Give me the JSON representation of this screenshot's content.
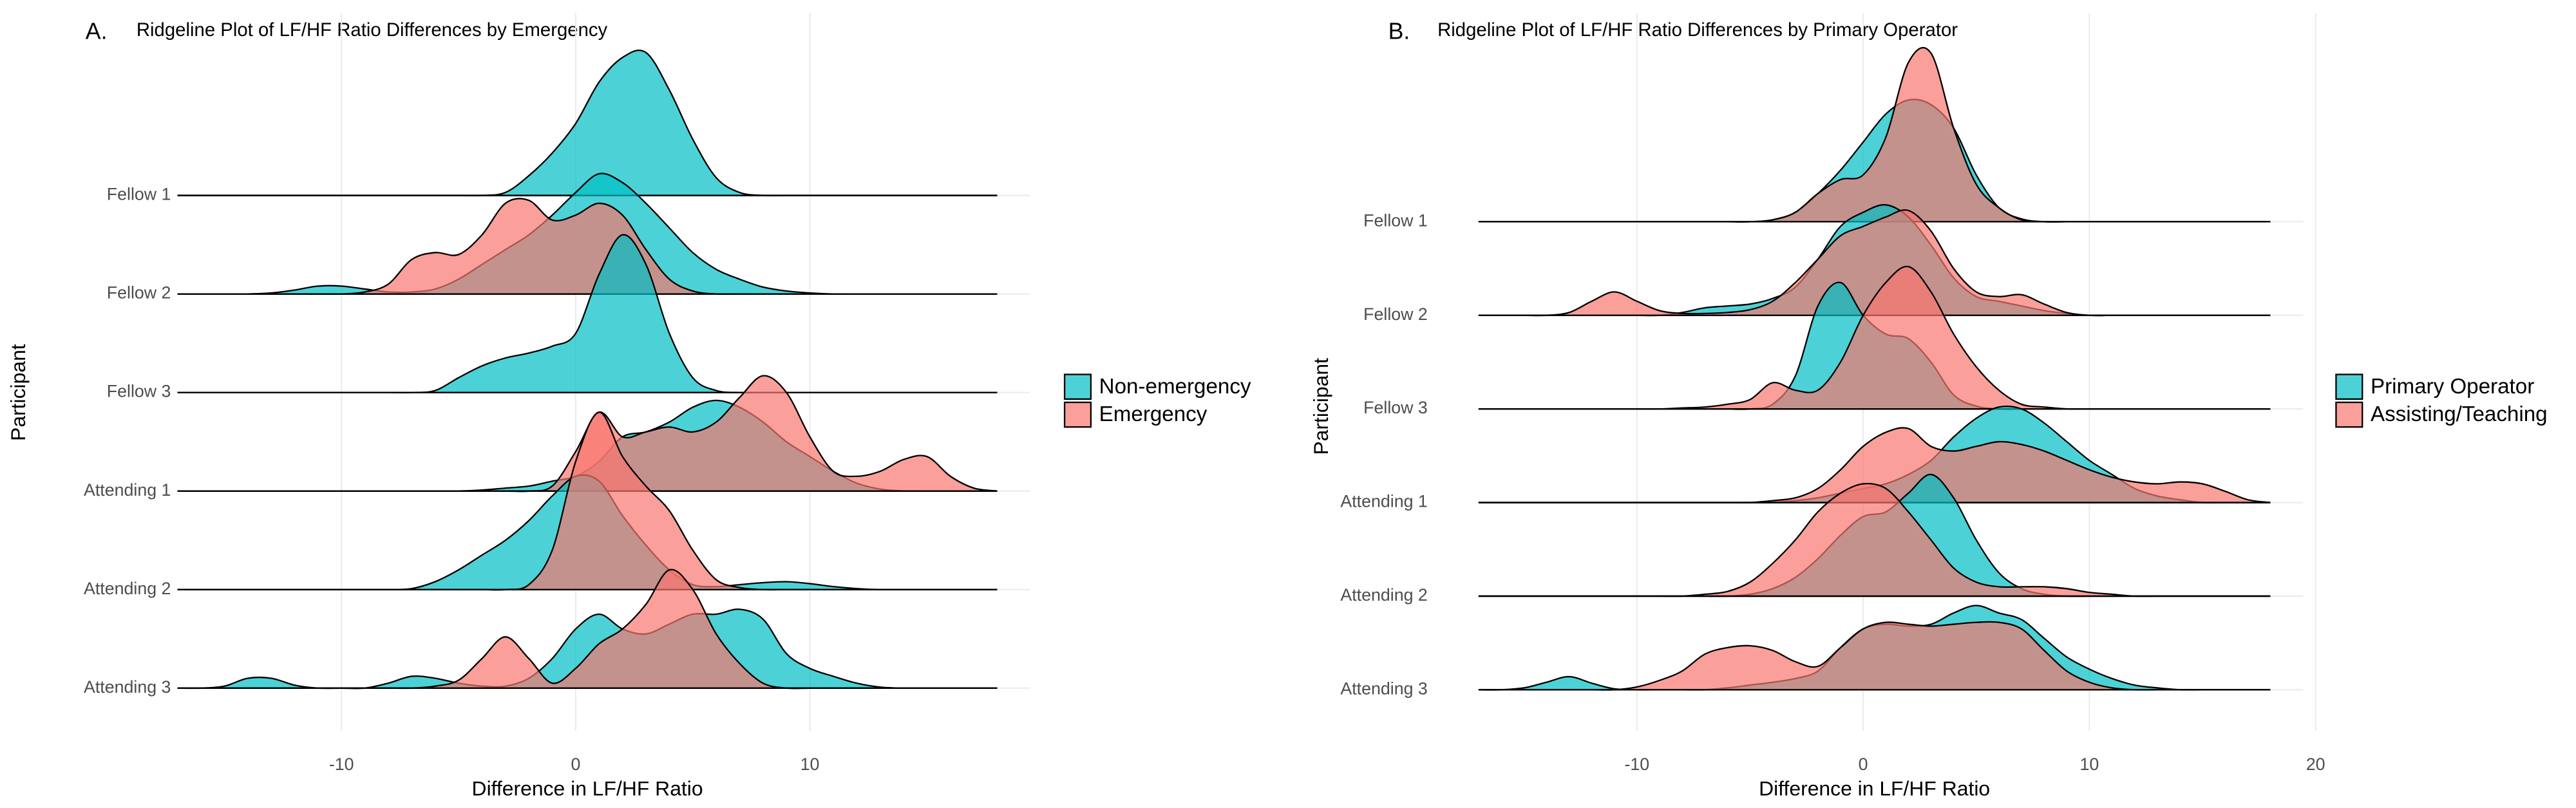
{
  "chart_data": [
    {
      "type": "ridgeline",
      "panel_label": "A.",
      "title": "Ridgeline Plot of LF/HF Ratio Differences by Emergency",
      "x_label": "Difference in LF/HF Ratio",
      "y_label": "Participant",
      "categories": [
        "Fellow 1",
        "Fellow 2",
        "Fellow 3",
        "Attending 1",
        "Attending 2",
        "Attending 3"
      ],
      "x": [
        -17,
        -16,
        -15,
        -14,
        -13,
        -12,
        -11,
        -10,
        -9,
        -8,
        -7,
        -6,
        -5,
        -4,
        -3,
        -2,
        -1,
        0,
        1,
        2,
        3,
        4,
        5,
        6,
        7,
        8,
        9,
        10,
        11,
        12,
        13,
        14,
        15,
        16,
        17,
        18
      ],
      "xlim": [
        -17,
        18
      ],
      "xticks": [
        -10,
        0,
        10
      ],
      "grid": true,
      "legend": "right",
      "series": [
        {
          "name": "Non-emergency",
          "color": "#00BFC4",
          "values": [
            [
              0,
              0,
              0,
              0,
              0,
              0,
              0,
              0,
              0,
              0,
              0,
              0,
              0,
              0,
              0.03,
              0.2,
              0.43,
              0.73,
              1.15,
              1.4,
              1.45,
              1.07,
              0.57,
              0.18,
              0.03,
              0,
              0,
              0,
              0,
              0,
              0,
              0,
              0,
              0,
              0,
              0
            ],
            [
              0,
              0,
              0,
              0,
              0.01,
              0.04,
              0.08,
              0.08,
              0.05,
              0.02,
              0.02,
              0.05,
              0.15,
              0.3,
              0.45,
              0.6,
              0.8,
              1.03,
              1.22,
              1.13,
              0.92,
              0.67,
              0.42,
              0.25,
              0.15,
              0.07,
              0.03,
              0.01,
              0,
              0,
              0,
              0,
              0,
              0,
              0,
              0
            ],
            [
              0,
              0,
              0,
              0,
              0,
              0,
              0,
              0,
              0,
              0,
              0,
              0.02,
              0.15,
              0.27,
              0.35,
              0.4,
              0.47,
              0.6,
              1.2,
              1.6,
              1.3,
              0.6,
              0.15,
              0.02,
              0,
              0,
              0,
              0,
              0,
              0,
              0,
              0,
              0,
              0,
              0,
              0
            ],
            [
              0,
              0,
              0,
              0,
              0,
              0,
              0,
              0,
              0,
              0,
              0,
              0,
              0,
              0.01,
              0.03,
              0.05,
              0.1,
              0.15,
              0.3,
              0.55,
              0.6,
              0.7,
              0.85,
              0.92,
              0.85,
              0.7,
              0.5,
              0.35,
              0.2,
              0.08,
              0.02,
              0,
              0,
              0,
              0,
              0
            ],
            [
              0,
              0,
              0,
              0,
              0,
              0,
              0,
              0,
              0,
              0,
              0.01,
              0.08,
              0.2,
              0.35,
              0.5,
              0.7,
              0.95,
              1.15,
              1.1,
              0.75,
              0.45,
              0.2,
              0.05,
              0.03,
              0.05,
              0.07,
              0.08,
              0.06,
              0.03,
              0.01,
              0,
              0,
              0,
              0,
              0,
              0
            ],
            [
              0,
              0,
              0.02,
              0.1,
              0.1,
              0.03,
              0,
              0,
              0,
              0.05,
              0.12,
              0.1,
              0.05,
              0.02,
              0.02,
              0.1,
              0.3,
              0.6,
              0.75,
              0.6,
              0.55,
              0.65,
              0.75,
              0.75,
              0.8,
              0.7,
              0.35,
              0.2,
              0.12,
              0.05,
              0.01,
              0,
              0,
              0,
              0,
              0
            ]
          ]
        },
        {
          "name": "Emergency",
          "color": "#F8766D",
          "values": [
            null,
            [
              0,
              0,
              0,
              0,
              0,
              0,
              0,
              0,
              0.02,
              0.1,
              0.35,
              0.42,
              0.4,
              0.6,
              0.92,
              0.95,
              0.75,
              0.8,
              0.92,
              0.8,
              0.45,
              0.15,
              0.03,
              0,
              0,
              0,
              0,
              0,
              0,
              0,
              0,
              0,
              0,
              0,
              0,
              0
            ],
            null,
            [
              0,
              0,
              0,
              0,
              0,
              0,
              0,
              0,
              0,
              0,
              0,
              0,
              0,
              0,
              0,
              0,
              0.05,
              0.4,
              0.8,
              0.55,
              0.6,
              0.65,
              0.6,
              0.7,
              0.95,
              1.17,
              1.0,
              0.55,
              0.2,
              0.15,
              0.2,
              0.32,
              0.35,
              0.15,
              0.03,
              0
            ],
            [
              0,
              0,
              0,
              0,
              0,
              0,
              0,
              0,
              0,
              0,
              0,
              0,
              0,
              0,
              0,
              0.05,
              0.4,
              1.3,
              1.8,
              1.35,
              1.05,
              0.8,
              0.4,
              0.1,
              0.02,
              0,
              0,
              0,
              0,
              0,
              0,
              0,
              0,
              0,
              0,
              0
            ],
            [
              0,
              0,
              0,
              0,
              0,
              0,
              0,
              0,
              0,
              0,
              0,
              0.02,
              0.08,
              0.3,
              0.52,
              0.3,
              0.05,
              0.2,
              0.45,
              0.6,
              0.85,
              1.2,
              1.0,
              0.55,
              0.25,
              0.05,
              0,
              0,
              0,
              0,
              0,
              0,
              0,
              0,
              0,
              0
            ]
          ]
        }
      ]
    },
    {
      "type": "ridgeline",
      "panel_label": "B.",
      "title": "Ridgeline Plot of LF/HF Ratio Differences by Primary Operator",
      "x_label": "Difference in LF/HF Ratio",
      "y_label": "Participant",
      "categories": [
        "Fellow 1",
        "Fellow 2",
        "Fellow 3",
        "Attending 1",
        "Attending 2",
        "Attending 3"
      ],
      "x": [
        -17,
        -16,
        -15,
        -14,
        -13,
        -12,
        -11,
        -10,
        -9,
        -8,
        -7,
        -6,
        -5,
        -4,
        -3,
        -2,
        -1,
        0,
        1,
        2,
        3,
        4,
        5,
        6,
        7,
        8,
        9,
        10,
        11,
        12,
        13,
        14,
        15,
        16,
        17,
        18
      ],
      "xlim": [
        -17,
        18
      ],
      "xticks": [
        -10,
        0,
        10,
        20
      ],
      "grid": true,
      "legend": "right",
      "series": [
        {
          "name": "Primary Operator",
          "color": "#00BFC4",
          "values": [
            [
              0,
              0,
              0,
              0,
              0,
              0,
              0,
              0,
              0,
              0,
              0,
              0,
              0,
              0.02,
              0.1,
              0.3,
              0.55,
              0.85,
              1.15,
              1.3,
              1.25,
              1.0,
              0.5,
              0.15,
              0.03,
              0,
              0,
              0,
              0,
              0,
              0,
              0,
              0,
              0,
              0,
              0
            ],
            [
              0,
              0,
              0,
              0,
              0,
              0,
              0,
              0,
              0,
              0.03,
              0.08,
              0.1,
              0.12,
              0.18,
              0.3,
              0.6,
              0.95,
              1.1,
              1.18,
              1.05,
              0.75,
              0.4,
              0.2,
              0.15,
              0.1,
              0.05,
              0.02,
              0,
              0,
              0,
              0,
              0,
              0,
              0,
              0,
              0
            ],
            [
              0,
              0,
              0,
              0,
              0,
              0,
              0,
              0,
              0,
              0,
              0,
              0,
              0,
              0.05,
              0.35,
              1.1,
              1.35,
              1.0,
              0.8,
              0.75,
              0.5,
              0.15,
              0.03,
              0,
              0,
              0,
              0,
              0,
              0,
              0,
              0,
              0,
              0,
              0,
              0,
              0
            ],
            [
              0,
              0,
              0,
              0,
              0,
              0,
              0,
              0,
              0,
              0,
              0,
              0,
              0,
              0,
              0.02,
              0.05,
              0.1,
              0.15,
              0.2,
              0.3,
              0.45,
              0.7,
              0.9,
              1.02,
              1.0,
              0.85,
              0.65,
              0.45,
              0.3,
              0.15,
              0.07,
              0.03,
              0,
              0,
              0,
              0
            ],
            [
              0,
              0,
              0,
              0,
              0,
              0,
              0,
              0,
              0,
              0,
              0,
              0,
              0.02,
              0.08,
              0.2,
              0.4,
              0.65,
              0.85,
              0.9,
              1.1,
              1.3,
              1.05,
              0.6,
              0.25,
              0.08,
              0.02,
              0,
              0,
              0,
              0,
              0,
              0,
              0,
              0,
              0,
              0
            ],
            [
              0,
              0,
              0.02,
              0.08,
              0.14,
              0.07,
              0.01,
              0,
              0,
              0,
              0,
              0.02,
              0.05,
              0.08,
              0.12,
              0.2,
              0.45,
              0.65,
              0.7,
              0.68,
              0.7,
              0.82,
              0.9,
              0.82,
              0.75,
              0.55,
              0.35,
              0.22,
              0.12,
              0.05,
              0.02,
              0,
              0,
              0,
              0,
              0
            ]
          ]
        },
        {
          "name": "Assisting/Teaching",
          "color": "#F8766D",
          "values": [
            [
              0,
              0,
              0,
              0,
              0,
              0,
              0,
              0,
              0,
              0,
              0,
              0,
              0,
              0.02,
              0.1,
              0.3,
              0.45,
              0.5,
              0.9,
              1.7,
              1.8,
              1.0,
              0.4,
              0.15,
              0.02,
              0,
              0,
              0,
              0,
              0,
              0,
              0,
              0,
              0,
              0,
              0
            ],
            [
              0,
              0,
              0,
              0,
              0.03,
              0.15,
              0.25,
              0.15,
              0.05,
              0.02,
              0.02,
              0.03,
              0.06,
              0.15,
              0.35,
              0.6,
              0.85,
              0.95,
              1.05,
              1.12,
              0.9,
              0.5,
              0.25,
              0.2,
              0.22,
              0.12,
              0.03,
              0,
              0,
              0,
              0,
              0,
              0,
              0,
              0,
              0
            ],
            [
              0,
              0,
              0,
              0,
              0,
              0,
              0,
              0,
              0,
              0.01,
              0.02,
              0.05,
              0.1,
              0.28,
              0.2,
              0.2,
              0.5,
              1.0,
              1.35,
              1.52,
              1.25,
              0.8,
              0.45,
              0.2,
              0.05,
              0.02,
              0,
              0,
              0,
              0,
              0,
              0,
              0,
              0,
              0,
              0
            ],
            [
              0,
              0,
              0,
              0,
              0,
              0,
              0,
              0,
              0,
              0,
              0,
              0,
              0,
              0.02,
              0.05,
              0.15,
              0.35,
              0.6,
              0.75,
              0.79,
              0.6,
              0.55,
              0.6,
              0.65,
              0.62,
              0.55,
              0.45,
              0.35,
              0.27,
              0.22,
              0.2,
              0.22,
              0.2,
              0.12,
              0.03,
              0
            ],
            [
              0,
              0,
              0,
              0,
              0,
              0,
              0,
              0,
              0,
              0,
              0.02,
              0.05,
              0.15,
              0.35,
              0.6,
              0.9,
              1.1,
              1.2,
              1.15,
              0.9,
              0.6,
              0.3,
              0.15,
              0.1,
              0.1,
              0.1,
              0.08,
              0.04,
              0.02,
              0,
              0,
              0,
              0,
              0,
              0,
              0
            ],
            [
              0,
              0,
              0,
              0,
              0,
              0,
              0,
              0.03,
              0.1,
              0.2,
              0.38,
              0.45,
              0.47,
              0.42,
              0.3,
              0.25,
              0.45,
              0.65,
              0.72,
              0.7,
              0.68,
              0.7,
              0.72,
              0.72,
              0.65,
              0.42,
              0.2,
              0.08,
              0.02,
              0,
              0,
              0,
              0,
              0,
              0,
              0
            ]
          ]
        }
      ]
    }
  ]
}
